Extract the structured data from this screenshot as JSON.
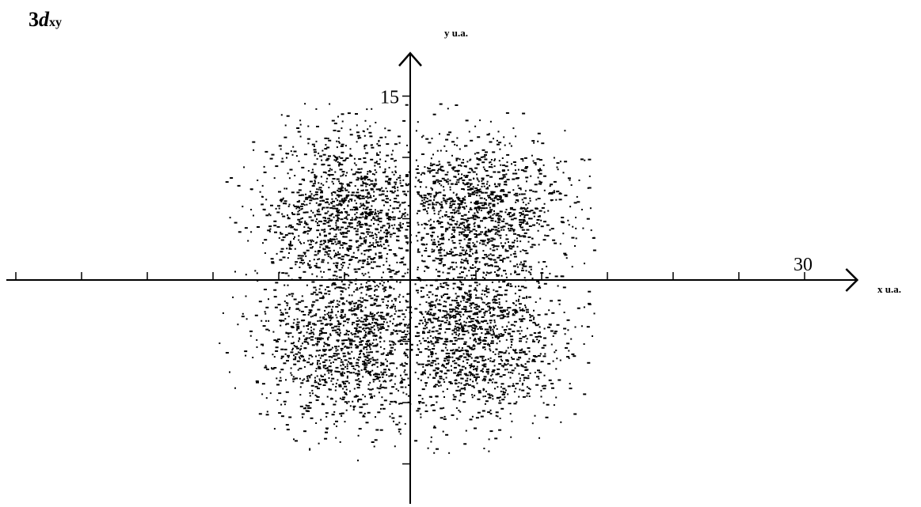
{
  "chart_data": {
    "type": "scatter",
    "title_prefix": "3",
    "title_letter": "d",
    "title_subscript": "xy",
    "xlabel": "x u.a.",
    "ylabel": "y u.a.",
    "x_tick_interval": 5,
    "y_tick_interval": 5,
    "x_tick_labels": [
      {
        "value": 30,
        "label": "30"
      }
    ],
    "y_tick_labels": [
      {
        "value": 15,
        "label": "15"
      }
    ],
    "xlim": [
      -31,
      34
    ],
    "ylim": [
      -18.5,
      18.5
    ],
    "grid": false,
    "legend": "none",
    "point_color": "#000000",
    "lobes": [
      {
        "name": "upper-left",
        "center": [
          -4.5,
          5
        ],
        "extent": [
          -15,
          0,
          0,
          15
        ],
        "points": 1200
      },
      {
        "name": "upper-right",
        "center": [
          4.5,
          5
        ],
        "extent": [
          0,
          15,
          0,
          15
        ],
        "points": 1200
      },
      {
        "name": "lower-left",
        "center": [
          -4.5,
          -4.5
        ],
        "extent": [
          -15,
          0,
          -15,
          0
        ],
        "points": 1200
      },
      {
        "name": "lower-right",
        "center": [
          4.5,
          -4.5
        ],
        "extent": [
          0,
          15,
          -15,
          0
        ],
        "points": 1200
      }
    ]
  }
}
